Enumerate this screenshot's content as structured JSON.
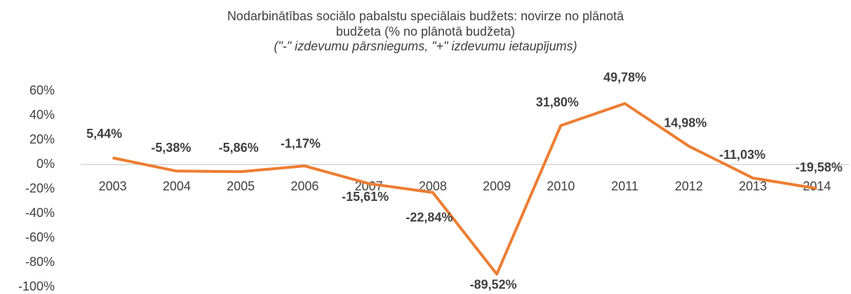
{
  "chart_data": {
    "type": "line",
    "title": "Nodarbinātības sociālo pabalstu speciālais budžets: novirze no plānotā budžeta (% no plānotā budžeta)",
    "subtitle": "(\"-\" izdevumu pārsniegums, \"+\" izdevumu ietaupījums)",
    "categories": [
      "2003",
      "2004",
      "2005",
      "2006",
      "2007",
      "2008",
      "2009",
      "2010",
      "2011",
      "2012",
      "2013",
      "2014"
    ],
    "series": [
      {
        "name": "Novirze",
        "color": "#ed7d31",
        "values": [
          5.44,
          -5.38,
          -5.86,
          -1.17,
          -15.61,
          -22.84,
          -89.52,
          31.8,
          49.78,
          14.98,
          -11.03,
          -19.58
        ],
        "value_labels": [
          "5,44%",
          "-5,38%",
          "-5,86%",
          "-1,17%",
          "-15,61%",
          "-22,84%",
          "-89,52%",
          "31,80%",
          "49,78%",
          "14,98%",
          "-11,03%",
          "-19,58%"
        ]
      }
    ],
    "ylim": [
      -100,
      60
    ],
    "yticks": [
      {
        "value": -100,
        "label": "-100%"
      },
      {
        "value": -80,
        "label": "-80%"
      },
      {
        "value": -60,
        "label": "-60%"
      },
      {
        "value": -40,
        "label": "-40%"
      },
      {
        "value": -20,
        "label": "-20%"
      },
      {
        "value": 0,
        "label": "0%"
      },
      {
        "value": 20,
        "label": "20%"
      },
      {
        "value": 40,
        "label": "40%"
      },
      {
        "value": 60,
        "label": "60%"
      }
    ]
  }
}
